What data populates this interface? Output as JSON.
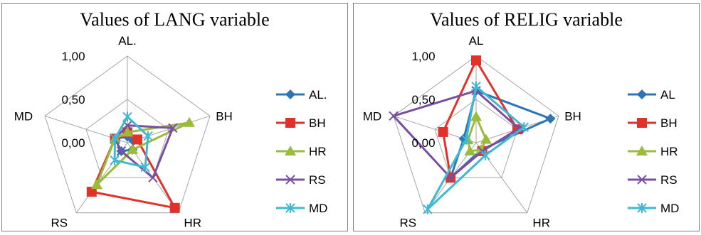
{
  "chart_data": [
    {
      "type": "radar",
      "title": "Values of LANG variable",
      "axes": [
        "AL.",
        "BH",
        "HR",
        "RS",
        "MD"
      ],
      "rlim": [
        0,
        1
      ],
      "ticks": [
        "0,00",
        "0,50",
        "1,00"
      ],
      "tick_values": [
        0,
        0.5,
        1
      ],
      "grid": true,
      "legend_position": "right",
      "series": [
        {
          "name": "AL.",
          "color": "#2e75b6",
          "marker": "diamond",
          "values": [
            0.07,
            0.07,
            0.1,
            0.12,
            0.15
          ]
        },
        {
          "name": "BH",
          "color": "#e0312b",
          "marker": "square",
          "values": [
            0.12,
            0.12,
            0.93,
            0.7,
            0.15
          ]
        },
        {
          "name": "HR",
          "color": "#9bbb3b",
          "marker": "triangle",
          "values": [
            0.12,
            0.75,
            0.1,
            0.6,
            0.15
          ]
        },
        {
          "name": "RS",
          "color": "#7b4fa0",
          "marker": "x",
          "values": [
            0.2,
            0.55,
            0.5,
            0.12,
            0.15
          ]
        },
        {
          "name": "MD",
          "color": "#3fb8d4",
          "marker": "asterisk",
          "values": [
            0.3,
            0.25,
            0.35,
            0.25,
            0.15
          ]
        }
      ]
    },
    {
      "type": "radar",
      "title": "Values of RELIG variable",
      "axes": [
        "AL",
        "BH",
        "HR",
        "RS",
        "MD"
      ],
      "rlim": [
        0,
        1
      ],
      "ticks": [
        "0,00",
        "0,50",
        "1,00"
      ],
      "tick_values": [
        0,
        0.5,
        1
      ],
      "grid": true,
      "legend_position": "right",
      "series": [
        {
          "name": "AL",
          "color": "#2e75b6",
          "marker": "diamond",
          "values": [
            0.6,
            0.9,
            0.1,
            0.5,
            0.15
          ]
        },
        {
          "name": "BH",
          "color": "#e0312b",
          "marker": "square",
          "values": [
            0.95,
            0.5,
            0.12,
            0.5,
            0.4
          ]
        },
        {
          "name": "HR",
          "color": "#9bbb3b",
          "marker": "triangle",
          "values": [
            0.3,
            0.12,
            0.1,
            0.12,
            0.1
          ]
        },
        {
          "name": "RS",
          "color": "#7b4fa0",
          "marker": "x",
          "values": [
            0.6,
            0.52,
            0.12,
            0.5,
            1.0
          ]
        },
        {
          "name": "MD",
          "color": "#3fb8d4",
          "marker": "asterisk",
          "values": [
            0.65,
            0.58,
            0.18,
            0.95,
            0.12
          ]
        }
      ]
    }
  ]
}
